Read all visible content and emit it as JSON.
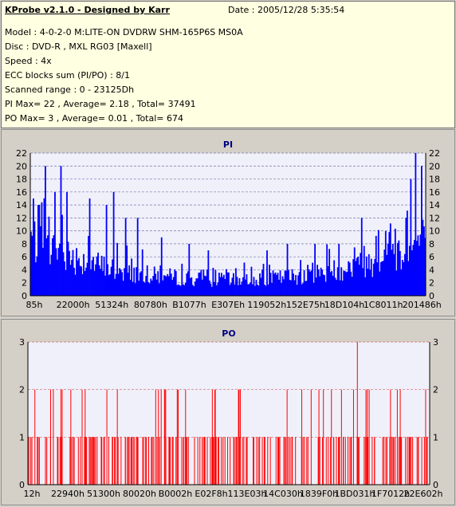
{
  "info": {
    "title": "KProbe v2.1.0 - Designed by Karr",
    "date": "Date : 2005/12/28 5:35:54",
    "model": "Model : 4-0-2-0 M:LITE-ON DVDRW SHM-165P6S MS0A",
    "disc": "Disc : DVD-R , MXL RG03 [Maxell]",
    "speed": "Speed : 4x",
    "ecc": "ECC blocks sum (PI/PO) : 8/1",
    "range": "Scanned range : 0 - 23125Dh",
    "pi_stats": "PI Max= 22 , Average= 2.18 , Total= 37491",
    "po_stats": "PO Max= 3 , Average= 0.01 , Total= 674"
  },
  "chart_data": [
    {
      "type": "bar",
      "title": "PI",
      "color": "#0000ff",
      "ylim": [
        0,
        22
      ],
      "yticks": [
        0,
        2,
        4,
        6,
        8,
        10,
        12,
        14,
        16,
        18,
        20,
        22
      ],
      "xtick_labels": [
        "85h",
        "22000h",
        "51324h",
        "80780h",
        "B1077h",
        "E307Eh",
        "119052h",
        "152E75h",
        "18D104h",
        "1C8011h",
        "201486h"
      ],
      "grid": true,
      "x_range": [
        "0",
        "23125Dh"
      ],
      "profile_points": [
        [
          0,
          11
        ],
        [
          0.03,
          9
        ],
        [
          0.08,
          8
        ],
        [
          0.14,
          6.5
        ],
        [
          0.2,
          5
        ],
        [
          0.28,
          4
        ],
        [
          0.36,
          3.5
        ],
        [
          0.45,
          3
        ],
        [
          0.55,
          3
        ],
        [
          0.65,
          3.5
        ],
        [
          0.75,
          4.5
        ],
        [
          0.85,
          6
        ],
        [
          0.93,
          8
        ],
        [
          0.97,
          9.5
        ],
        [
          1.0,
          11
        ]
      ],
      "peaks": [
        [
          0.005,
          15
        ],
        [
          0.02,
          14
        ],
        [
          0.035,
          20
        ],
        [
          0.06,
          16
        ],
        [
          0.075,
          20
        ],
        [
          0.09,
          16
        ],
        [
          0.15,
          15
        ],
        [
          0.19,
          14
        ],
        [
          0.21,
          16
        ],
        [
          0.24,
          12
        ],
        [
          0.27,
          12
        ],
        [
          0.33,
          9
        ],
        [
          0.4,
          8
        ],
        [
          0.45,
          7
        ],
        [
          0.6,
          7
        ],
        [
          0.65,
          8
        ],
        [
          0.72,
          8
        ],
        [
          0.78,
          8
        ],
        [
          0.84,
          12
        ],
        [
          0.9,
          10
        ],
        [
          0.95,
          12
        ],
        [
          0.965,
          18
        ],
        [
          0.975,
          22
        ],
        [
          0.99,
          20
        ]
      ]
    },
    {
      "type": "bar",
      "title": "PO",
      "color": "#ff0000",
      "ylim": [
        0,
        3
      ],
      "yticks": [
        0,
        1,
        2,
        3
      ],
      "xtick_labels": [
        "12h",
        "22940h",
        "51300h",
        "80020h",
        "B0002h",
        "E02F8h",
        "113E03h",
        "14C030h",
        "1839F0h",
        "1BD031h",
        "1F7012h",
        "22E602h"
      ],
      "grid": true,
      "x_range": [
        "0",
        "23125Dh"
      ],
      "value_levels": [
        0,
        1,
        2,
        3
      ],
      "max_value": 3,
      "max_at_fraction": 0.82
    }
  ]
}
